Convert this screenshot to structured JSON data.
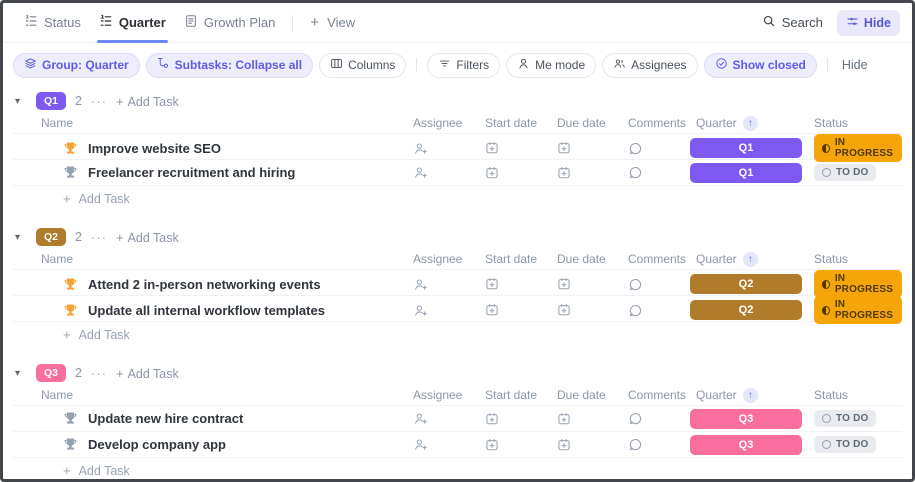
{
  "tabs": {
    "items": [
      {
        "label": "Status"
      },
      {
        "label": "Quarter"
      },
      {
        "label": "Growth Plan"
      }
    ],
    "add_view_label": "View",
    "search_label": "Search",
    "hide_label": "Hide"
  },
  "toolbar": {
    "pills": [
      {
        "label": "Group: Quarter",
        "icon": "group-by-icon",
        "active": true
      },
      {
        "label": "Subtasks: Collapse all",
        "icon": "subtasks-icon",
        "active": true
      },
      {
        "label": "Columns",
        "icon": "columns-icon",
        "active": false
      },
      {
        "label": "Filters",
        "icon": "filters-icon",
        "active": false
      },
      {
        "label": "Me mode",
        "icon": "me-mode-icon",
        "active": false
      },
      {
        "label": "Assignees",
        "icon": "assignees-icon",
        "active": false
      },
      {
        "label": "Show closed",
        "icon": "show-closed-icon",
        "active": true
      }
    ],
    "hide_label": "Hide"
  },
  "table": {
    "columns": [
      "Name",
      "Assignee",
      "Start date",
      "Due date",
      "Comments",
      "Quarter",
      "Status"
    ],
    "sort_indicator": "↑"
  },
  "labels": {
    "add_task": "Add Task",
    "more": "···",
    "plus": "+",
    "chevron": "▾"
  },
  "groups": [
    {
      "name": "Q1",
      "color": "#7d59f2",
      "count": "2",
      "tasks": [
        {
          "name": "Improve website SEO",
          "goal_color": "orange",
          "quarter": "Q1",
          "status": "IN PROGRESS",
          "status_type": "in-progress"
        },
        {
          "name": "Freelancer recruitment and hiring",
          "goal_color": "gray",
          "quarter": "Q1",
          "status": "TO DO",
          "status_type": "todo"
        }
      ]
    },
    {
      "name": "Q2",
      "color": "#b07b2b",
      "count": "2",
      "tasks": [
        {
          "name": "Attend 2 in-person networking events",
          "goal_color": "orange",
          "quarter": "Q2",
          "status": "IN PROGRESS",
          "status_type": "in-progress"
        },
        {
          "name": "Update all internal workflow templates",
          "goal_color": "orange",
          "quarter": "Q2",
          "status": "IN PROGRESS",
          "status_type": "in-progress"
        }
      ]
    },
    {
      "name": "Q3",
      "color": "#f96e9e",
      "count": "2",
      "tasks": [
        {
          "name": "Update new hire contract",
          "goal_color": "gray",
          "quarter": "Q3",
          "status": "TO DO",
          "status_type": "todo"
        },
        {
          "name": "Develop company app",
          "goal_color": "gray",
          "quarter": "Q3",
          "status": "TO DO",
          "status_type": "todo"
        }
      ]
    }
  ],
  "colors": {
    "accent": "#6b8af8",
    "active_pill_bg": "#ededfc",
    "active_pill_text": "#5d5be8",
    "q1": "#7d59f2",
    "q2": "#b07b2b",
    "q3": "#f96e9e",
    "status_in_progress_bg": "#f5a409",
    "status_todo_bg": "#e9ebee",
    "goal_orange": "#f2a33c",
    "goal_gray": "#93a0af"
  }
}
